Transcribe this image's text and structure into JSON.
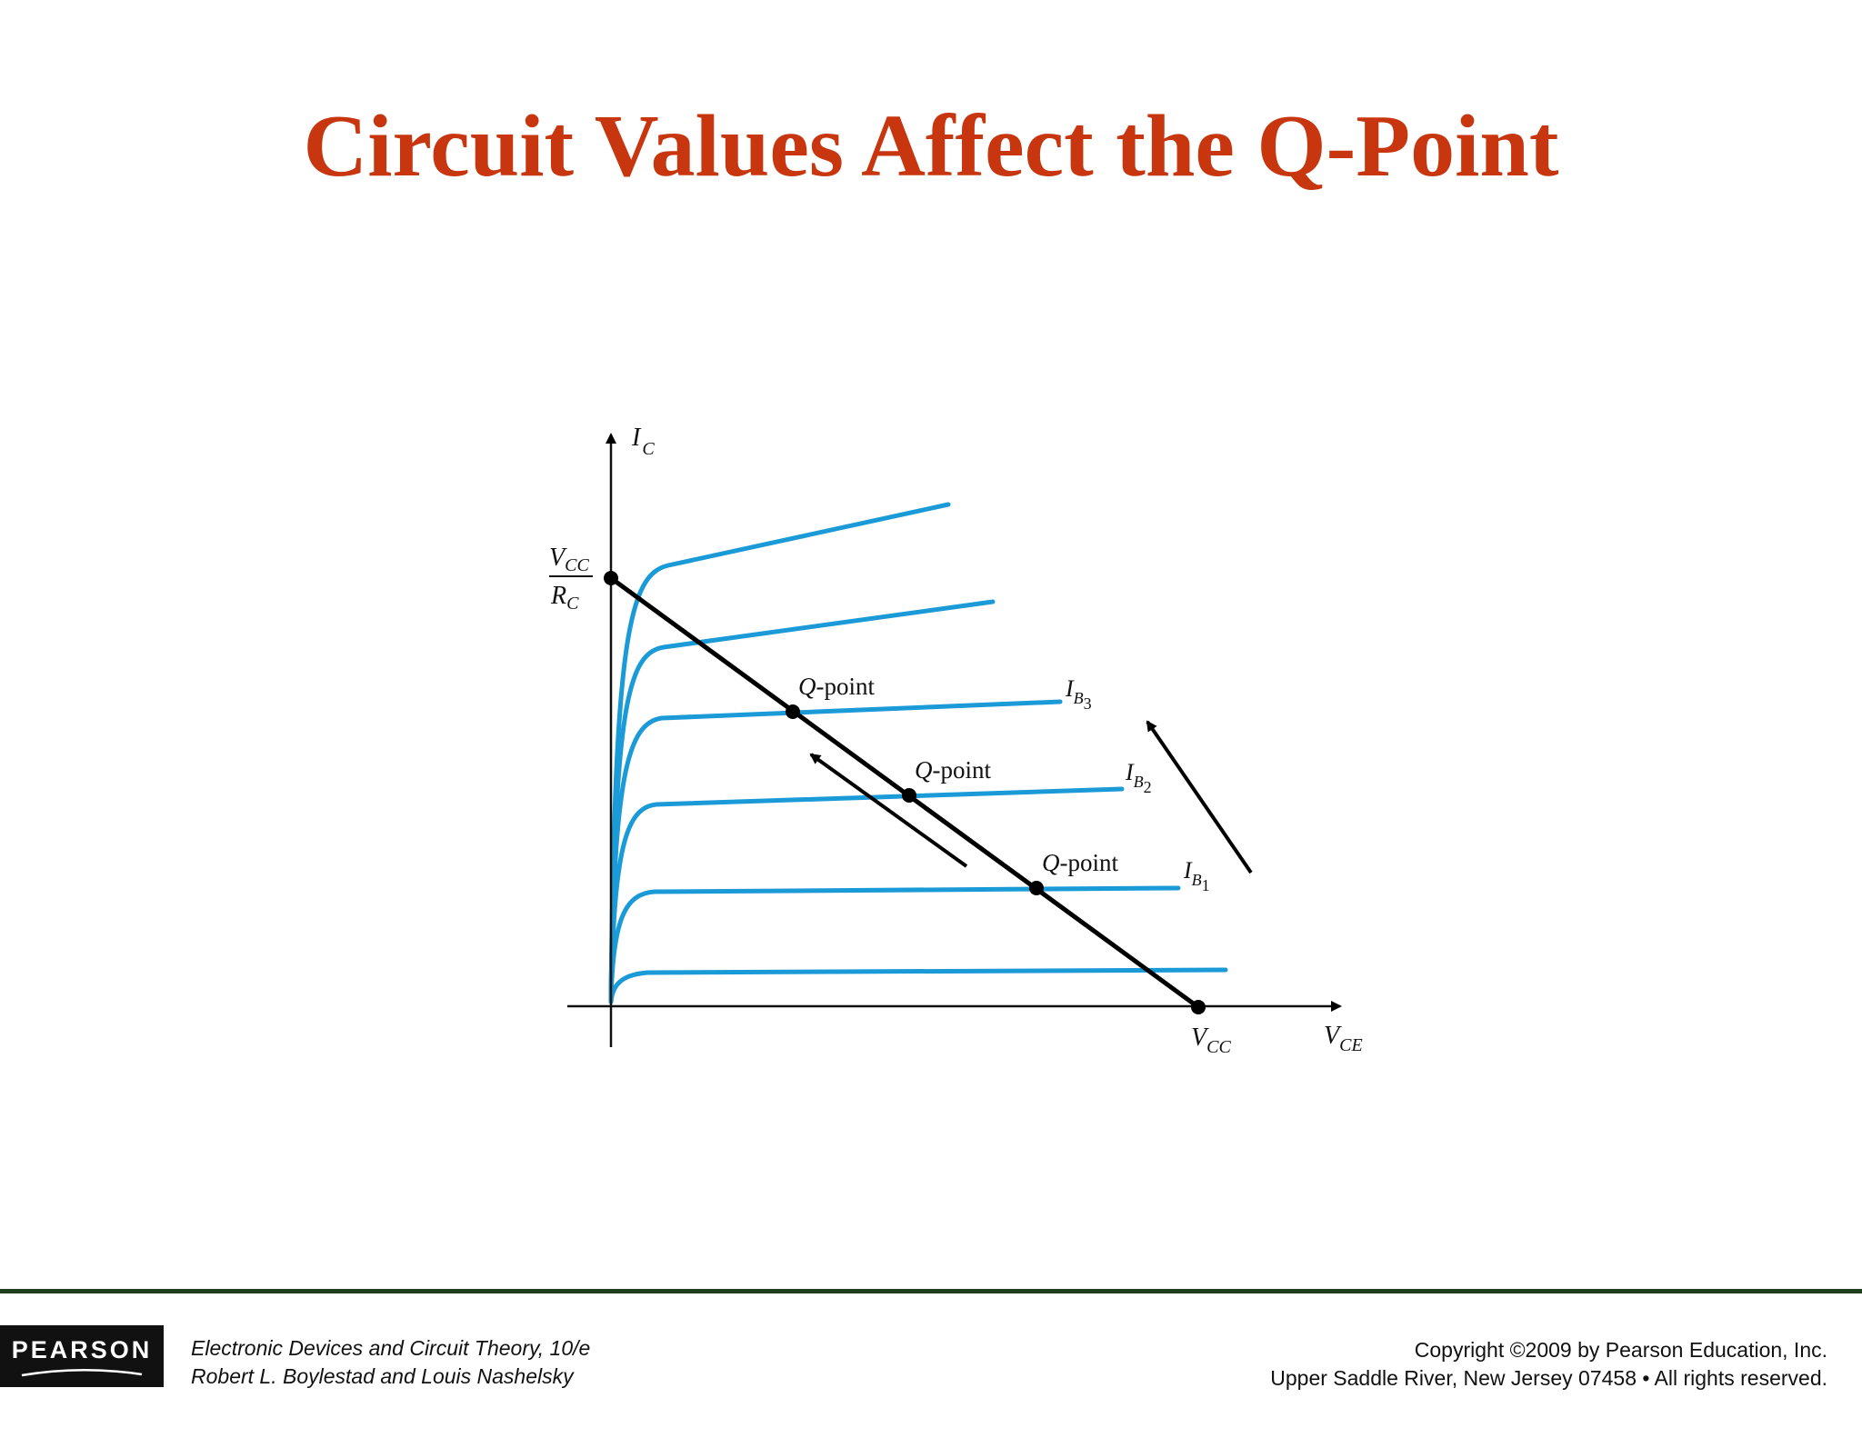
{
  "title": "Circuit Values Affect the Q-Point",
  "diagram": {
    "y_axis": {
      "symbol": "I",
      "sub": "C"
    },
    "x_axis": {
      "symbol": "V",
      "sub": "CE"
    },
    "intercept_y": {
      "num_symbol": "V",
      "num_sub": "CC",
      "den_symbol": "R",
      "den_sub": "C"
    },
    "intercept_x": {
      "symbol": "V",
      "sub": "CC"
    },
    "q_points": [
      {
        "label_italic": "Q",
        "label_rest": "-point"
      },
      {
        "label_italic": "Q",
        "label_rest": "-point"
      },
      {
        "label_italic": "Q",
        "label_rest": "-point"
      }
    ],
    "base_currents": [
      {
        "symbol": "I",
        "sub": "B",
        "subsub": "3"
      },
      {
        "symbol": "I",
        "sub": "B",
        "subsub": "2"
      },
      {
        "symbol": "I",
        "sub": "B",
        "subsub": "1"
      }
    ],
    "colors": {
      "curve": "#1b9ad8",
      "loadline": "#000000"
    }
  },
  "footer": {
    "logo": "PEARSON",
    "book_line1": "Electronic Devices and Circuit Theory, 10/e",
    "book_line2": "Robert L. Boylestad and Louis Nashelsky",
    "copyright_line1": "Copyright ©2009 by Pearson Education, Inc.",
    "copyright_line2": "Upper Saddle River, New Jersey 07458 • All rights reserved."
  }
}
